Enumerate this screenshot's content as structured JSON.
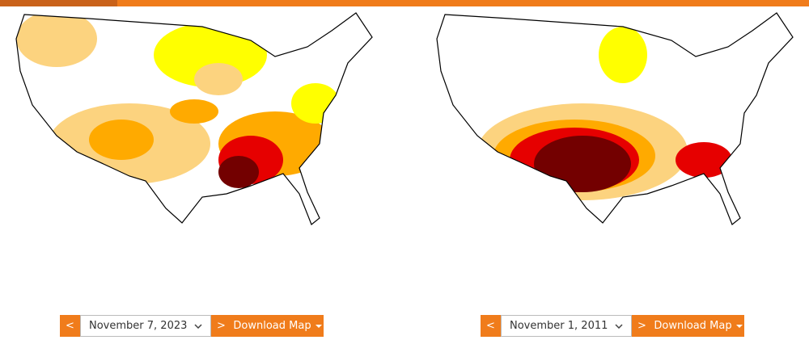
{
  "panels": [
    {
      "prev": "<",
      "date": "November 7, 2023",
      "next": ">",
      "download": "Download Map"
    },
    {
      "prev": "<",
      "date": "November 1, 2011",
      "next": ">",
      "download": "Download Map"
    }
  ]
}
